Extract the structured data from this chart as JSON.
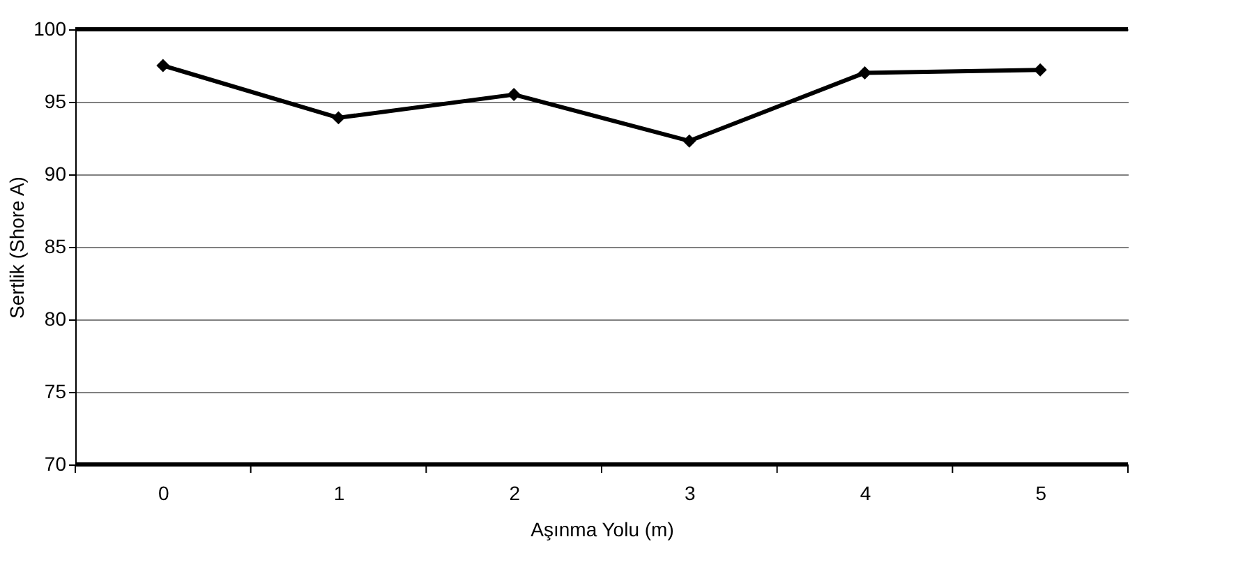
{
  "chart_data": {
    "type": "line",
    "xlabel": "Aşınma Yolu (m)",
    "ylabel": "Sertlik (Shore A)",
    "categories": [
      "0",
      "1",
      "2",
      "3",
      "4",
      "5"
    ],
    "series": [
      {
        "color": "#000000",
        "values": [
          97.5,
          93.9,
          95.5,
          92.3,
          97.0,
          97.2
        ]
      }
    ],
    "ylim": [
      70,
      100
    ],
    "yticks": [
      70,
      75,
      80,
      85,
      90,
      95,
      100
    ],
    "grid": "y",
    "marker": "diamond",
    "line_style": "solid"
  }
}
